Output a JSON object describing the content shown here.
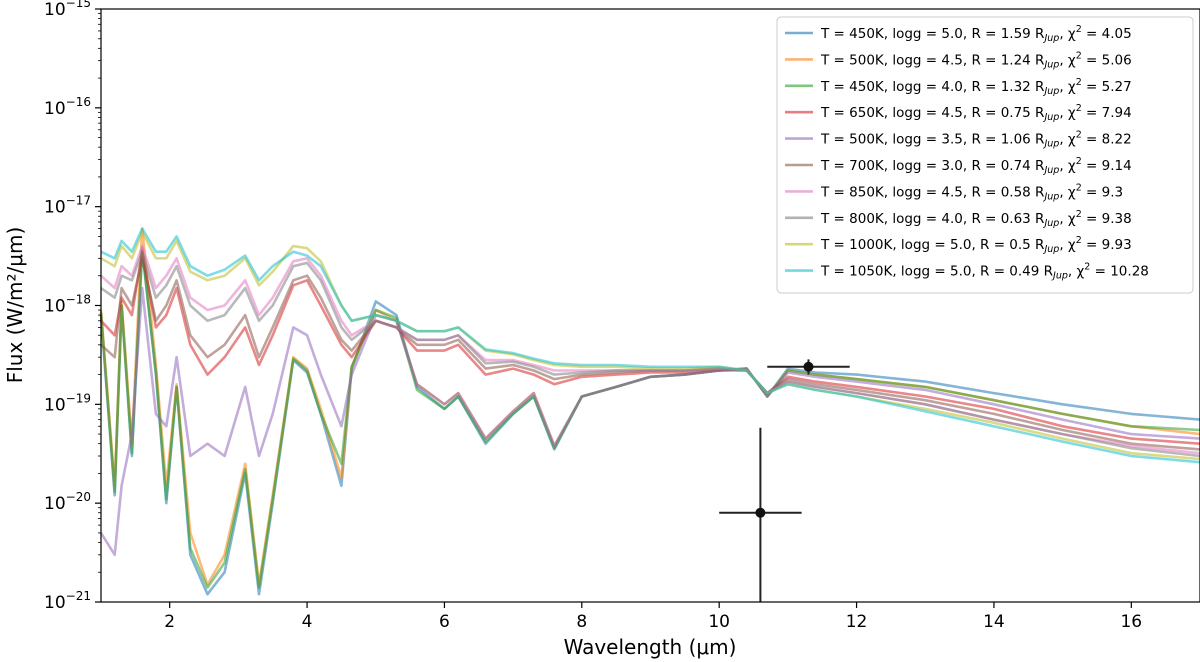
{
  "chart_data": {
    "type": "line",
    "title": "",
    "xlabel": "Wavelength (μm)",
    "ylabel": "Flux (W/m²/μm)",
    "xlim": [
      1.0,
      17.0
    ],
    "ylim": [
      1e-21,
      1e-15
    ],
    "yscale": "log",
    "grid": false,
    "legend_position": "top-right",
    "x_ticks": [
      2,
      4,
      6,
      8,
      10,
      12,
      14,
      16
    ],
    "x_tick_labels": [
      "2",
      "4",
      "6",
      "8",
      "10",
      "12",
      "14",
      "16"
    ],
    "y_ticks": [
      -21,
      -20,
      -19,
      -18,
      -17,
      -16,
      -15
    ],
    "y_tick_labels": [
      "10",
      "10",
      "10",
      "10",
      "10",
      "10",
      "10"
    ],
    "y_tick_exponents": [
      "−21",
      "−20",
      "−19",
      "−18",
      "−17",
      "−16",
      "−15"
    ],
    "x": [
      1.0,
      1.2,
      1.3,
      1.45,
      1.6,
      1.8,
      1.95,
      2.1,
      2.3,
      2.55,
      2.8,
      3.1,
      3.3,
      3.5,
      3.8,
      4.0,
      4.2,
      4.5,
      4.65,
      5.0,
      5.3,
      5.6,
      6.0,
      6.2,
      6.6,
      7.0,
      7.3,
      7.6,
      8.0,
      8.5,
      9.0,
      9.5,
      10.0,
      10.4,
      10.7,
      11.0,
      11.4,
      12.0,
      13.0,
      14.0,
      15.0,
      16.0,
      17.0
    ],
    "series": [
      {
        "name": "T = 450K, logg = 5.0, R = 1.59 R",
        "sub": "Jup",
        "chi": "4.05",
        "color": "#1f77b4",
        "values": [
          8e-19,
          1.2e-20,
          1e-18,
          3e-20,
          3.8e-18,
          2e-19,
          1e-20,
          1.5e-19,
          3e-21,
          1.2e-21,
          2e-21,
          2e-20,
          1.2e-21,
          1e-20,
          2.8e-19,
          2.1e-19,
          8e-20,
          1.5e-20,
          2.3e-19,
          1.1e-18,
          8e-19,
          1.5e-19,
          9e-20,
          1.2e-19,
          4e-20,
          8e-20,
          1.2e-19,
          3.5e-20,
          1.2e-19,
          1.5e-19,
          1.9e-19,
          2e-19,
          2.2e-19,
          2.3e-19,
          1.2e-19,
          2.3e-19,
          2.1e-19,
          2e-19,
          1.7e-19,
          1.3e-19,
          1e-19,
          8e-20,
          7e-20
        ]
      },
      {
        "name": "T = 500K, logg = 4.5, R = 1.24 R",
        "sub": "Jup",
        "chi": "5.06",
        "color": "#ff7f0e",
        "values": [
          9e-19,
          1.5e-20,
          1.1e-18,
          4e-20,
          6e-18,
          2.5e-19,
          1.5e-20,
          1.6e-19,
          5e-21,
          1.5e-21,
          3e-21,
          2.5e-20,
          1.5e-21,
          1.2e-20,
          3e-19,
          2.3e-19,
          9e-20,
          1.8e-20,
          2.4e-19,
          9e-19,
          7e-19,
          1.6e-19,
          1e-19,
          1.3e-19,
          4.5e-20,
          8.5e-20,
          1.3e-19,
          3.8e-20,
          1.2e-19,
          1.5e-19,
          1.9e-19,
          2e-19,
          2.2e-19,
          2.3e-19,
          1.2e-19,
          2.2e-19,
          2e-19,
          1.8e-19,
          1.5e-19,
          1.1e-19,
          8e-20,
          6e-20,
          5e-20
        ]
      },
      {
        "name": "T = 450K, logg = 4.0, R = 1.32 R",
        "sub": "Jup",
        "chi": "5.27",
        "color": "#2ca02c",
        "values": [
          8.5e-19,
          1.3e-20,
          1e-18,
          3.2e-20,
          3.6e-18,
          2.1e-19,
          1.1e-20,
          1.5e-19,
          3.5e-21,
          1.4e-21,
          2.5e-21,
          2.2e-20,
          1.4e-21,
          1.1e-20,
          2.9e-19,
          2.2e-19,
          8e-20,
          2.5e-20,
          2.4e-19,
          9e-19,
          7.5e-19,
          1.4e-19,
          9e-20,
          1.2e-19,
          4.2e-20,
          8e-20,
          1.2e-19,
          3.6e-20,
          1.2e-19,
          1.5e-19,
          1.9e-19,
          2e-19,
          2.2e-19,
          2.3e-19,
          1.2e-19,
          2.2e-19,
          2e-19,
          1.8e-19,
          1.5e-19,
          1.1e-19,
          8e-20,
          6e-20,
          5.5e-20
        ]
      },
      {
        "name": "T = 650K, logg = 4.5, R = 0.75 R",
        "sub": "Jup",
        "chi": "7.94",
        "color": "#d62728",
        "values": [
          7e-19,
          5e-19,
          1.2e-18,
          8e-19,
          3.5e-18,
          6e-19,
          8e-19,
          1.5e-18,
          4e-19,
          2e-19,
          3e-19,
          6e-19,
          2.5e-19,
          5e-19,
          1.6e-18,
          1.8e-18,
          1e-18,
          4e-19,
          3e-19,
          7e-19,
          6e-19,
          3.5e-19,
          3.5e-19,
          4e-19,
          2e-19,
          2.3e-19,
          2e-19,
          1.6e-19,
          1.9e-19,
          2e-19,
          2.1e-19,
          2.1e-19,
          2.2e-19,
          2.2e-19,
          1.3e-19,
          1.9e-19,
          1.7e-19,
          1.5e-19,
          1.2e-19,
          9e-20,
          6e-20,
          4.5e-20,
          4e-20
        ]
      },
      {
        "name": "T = 500K, logg = 3.5, R = 1.06 R",
        "sub": "Jup",
        "chi": "8.22",
        "color": "#9467bd",
        "values": [
          5e-21,
          3e-21,
          1.5e-20,
          5e-20,
          1.5e-18,
          8e-20,
          6e-20,
          3e-19,
          3e-20,
          4e-20,
          3e-20,
          1.5e-19,
          3e-20,
          8e-20,
          6e-19,
          5e-19,
          2e-19,
          6e-20,
          2e-19,
          8e-19,
          7e-19,
          1.6e-19,
          1e-19,
          1.3e-19,
          4.5e-20,
          8.5e-20,
          1.3e-19,
          3.8e-20,
          1.2e-19,
          1.5e-19,
          1.9e-19,
          2e-19,
          2.2e-19,
          2.3e-19,
          1.2e-19,
          2.1e-19,
          1.9e-19,
          1.7e-19,
          1.4e-19,
          1e-19,
          7e-20,
          5e-20,
          4.5e-20
        ]
      },
      {
        "name": "T = 700K, logg = 3.0, R = 0.74 R",
        "sub": "Jup",
        "chi": "9.14",
        "color": "#8c564b",
        "values": [
          4e-19,
          3e-19,
          1.5e-18,
          1e-18,
          3e-18,
          7e-19,
          1e-18,
          1.8e-18,
          5e-19,
          3e-19,
          4e-19,
          8e-19,
          3e-19,
          6e-19,
          1.8e-18,
          2e-18,
          1.2e-18,
          4.5e-19,
          3.5e-19,
          7e-19,
          6e-19,
          4e-19,
          4e-19,
          4.5e-19,
          2.3e-19,
          2.5e-19,
          2.2e-19,
          1.8e-19,
          2e-19,
          2.1e-19,
          2.2e-19,
          2.2e-19,
          2.3e-19,
          2.2e-19,
          1.3e-19,
          1.8e-19,
          1.6e-19,
          1.4e-19,
          1.1e-19,
          8e-20,
          5.5e-20,
          4e-20,
          3.5e-20
        ]
      },
      {
        "name": "T = 850K, logg = 4.5, R = 0.58 R",
        "sub": "Jup",
        "chi": "9.3",
        "color": "#e377c2",
        "values": [
          2e-18,
          1.5e-18,
          2.5e-18,
          2e-18,
          4e-18,
          1.5e-18,
          2e-18,
          3e-18,
          1.2e-18,
          9e-19,
          1e-18,
          1.8e-18,
          8e-19,
          1.2e-18,
          2.8e-18,
          3e-18,
          2e-18,
          7e-19,
          5e-19,
          7e-19,
          6e-19,
          4.5e-19,
          4.5e-19,
          5e-19,
          2.8e-19,
          2.8e-19,
          2.5e-19,
          2.2e-19,
          2.2e-19,
          2.2e-19,
          2.2e-19,
          2.2e-19,
          2.3e-19,
          2.2e-19,
          1.3e-19,
          1.7e-19,
          1.5e-19,
          1.3e-19,
          1e-19,
          7e-20,
          5e-20,
          3.8e-20,
          3.2e-20
        ]
      },
      {
        "name": "T = 800K, logg = 4.0, R = 0.63 R",
        "sub": "Jup",
        "chi": "9.38",
        "color": "#7f7f7f",
        "values": [
          1.5e-18,
          1.2e-18,
          2e-18,
          1.8e-18,
          3.5e-18,
          1.2e-18,
          1.6e-18,
          2.5e-18,
          1e-18,
          7e-19,
          8e-19,
          1.5e-18,
          7e-19,
          1e-18,
          2.5e-18,
          2.7e-18,
          1.8e-18,
          6e-19,
          4.5e-19,
          7e-19,
          6e-19,
          4.5e-19,
          4.5e-19,
          5e-19,
          2.6e-19,
          2.7e-19,
          2.4e-19,
          2e-19,
          2.1e-19,
          2.2e-19,
          2.2e-19,
          2.2e-19,
          2.3e-19,
          2.2e-19,
          1.3e-19,
          1.7e-19,
          1.5e-19,
          1.3e-19,
          1e-19,
          7e-20,
          5e-20,
          3.6e-20,
          3e-20
        ]
      },
      {
        "name": "T = 1000K, logg = 5.0, R = 0.5 R",
        "sub": "Jup",
        "chi": "9.93",
        "color": "#bcbd22",
        "values": [
          3e-18,
          2.5e-18,
          4e-18,
          3e-18,
          5.5e-18,
          3e-18,
          3e-18,
          4.5e-18,
          2.2e-18,
          1.8e-18,
          2e-18,
          3e-18,
          1.6e-18,
          2.2e-18,
          4e-18,
          3.8e-18,
          2.8e-18,
          1e-18,
          7e-19,
          8e-19,
          7e-19,
          5.5e-19,
          5.5e-19,
          6e-19,
          3.5e-19,
          3.2e-19,
          2.8e-19,
          2.5e-19,
          2.4e-19,
          2.4e-19,
          2.3e-19,
          2.3e-19,
          2.4e-19,
          2.2e-19,
          1.3e-19,
          1.6e-19,
          1.4e-19,
          1.2e-19,
          9e-20,
          6.5e-20,
          4.5e-20,
          3.2e-20,
          2.8e-20
        ]
      },
      {
        "name": "T = 1050K, logg = 5.0, R = 0.49 R",
        "sub": "Jup",
        "chi": "10.28",
        "color": "#17becf",
        "values": [
          3.5e-18,
          3e-18,
          4.5e-18,
          3.5e-18,
          6e-18,
          3.5e-18,
          3.5e-18,
          5e-18,
          2.5e-18,
          2e-18,
          2.3e-18,
          3.2e-18,
          1.8e-18,
          2.5e-18,
          3.5e-18,
          3.2e-18,
          2.5e-18,
          1e-18,
          7e-19,
          8e-19,
          7e-19,
          5.5e-19,
          5.5e-19,
          6e-19,
          3.6e-19,
          3.3e-19,
          2.9e-19,
          2.6e-19,
          2.5e-19,
          2.5e-19,
          2.4e-19,
          2.4e-19,
          2.4e-19,
          2.2e-19,
          1.3e-19,
          1.6e-19,
          1.4e-19,
          1.2e-19,
          8.5e-20,
          6e-20,
          4.2e-20,
          3e-20,
          2.6e-20
        ]
      }
    ],
    "observations": [
      {
        "x": 10.6,
        "y": 8e-21,
        "xerr": 0.6,
        "yerr_low": 1e-21,
        "yerr_high": 5.8e-20
      },
      {
        "x": 11.3,
        "y": 2.4e-19,
        "xerr": 0.6,
        "yerr_low": 2e-19,
        "yerr_high": 2.85e-19
      }
    ],
    "legend_chi_prefix": ", χ",
    "legend_chi_sup": "2",
    "legend_chi_eq": " = "
  }
}
